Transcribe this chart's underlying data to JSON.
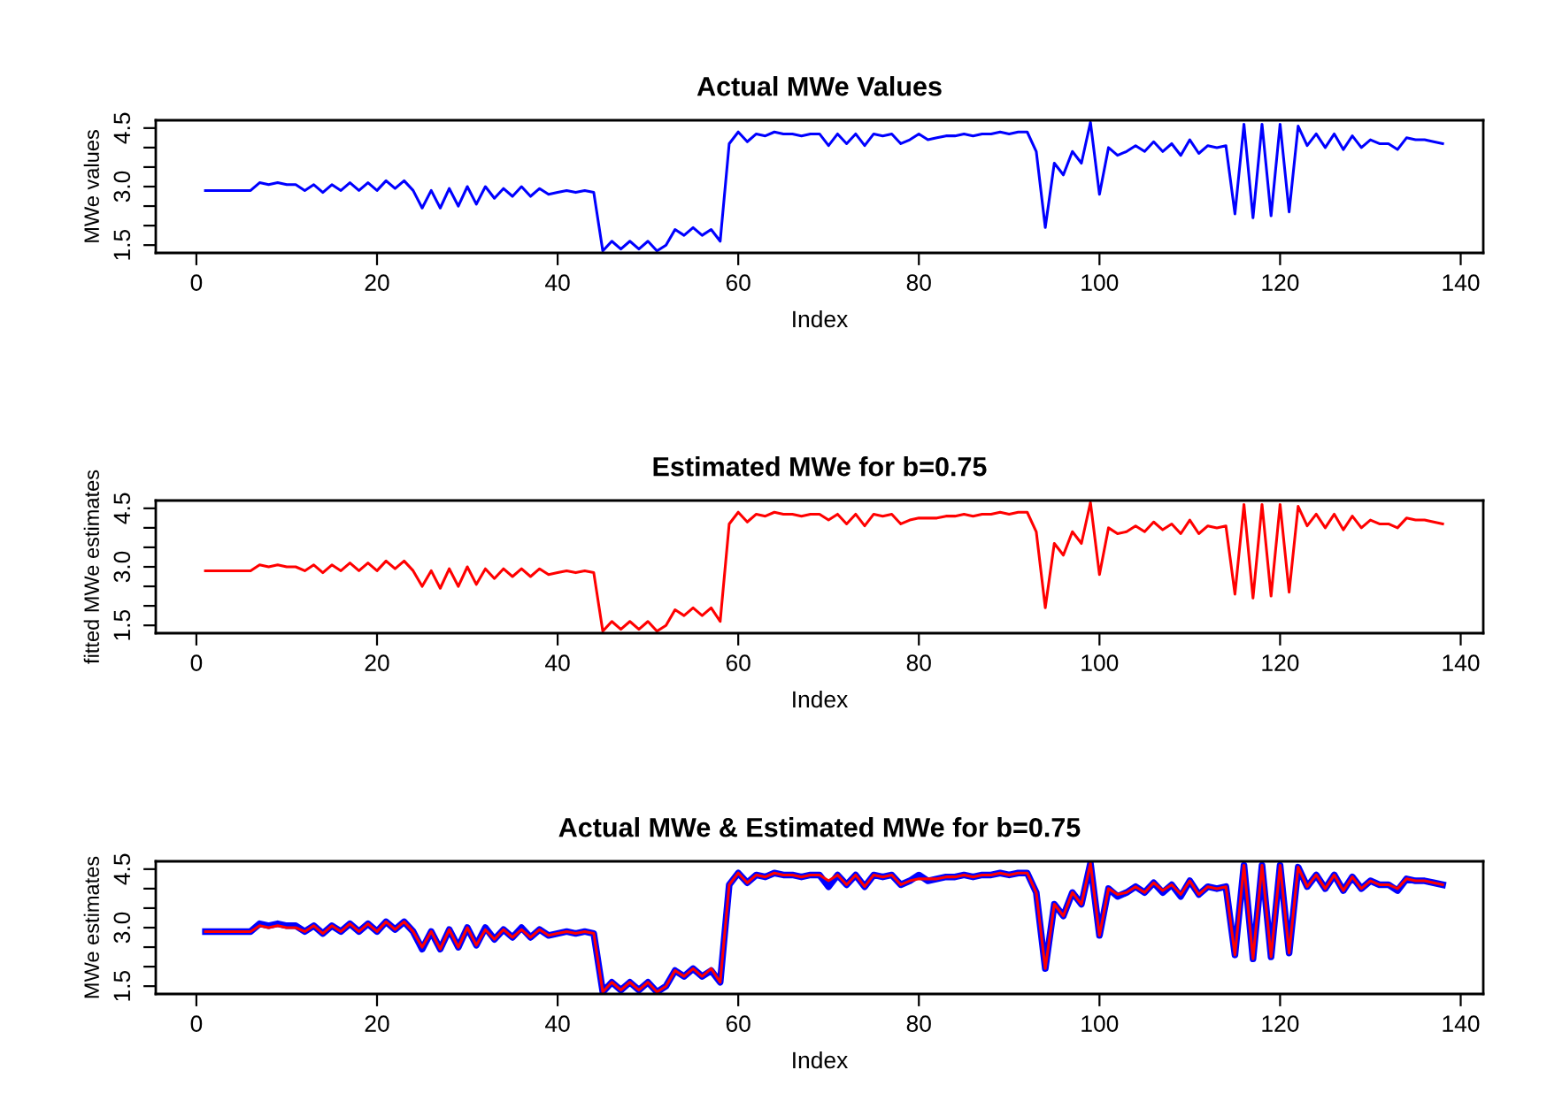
{
  "chart_data": [
    {
      "type": "line",
      "title": "Actual MWe Values",
      "xlabel": "Index",
      "ylabel": "MWe values",
      "x": [
        1,
        2,
        3,
        4,
        5,
        6,
        7,
        8,
        9,
        10,
        11,
        12,
        13,
        14,
        15,
        16,
        17,
        18,
        19,
        20,
        21,
        22,
        23,
        24,
        25,
        26,
        27,
        28,
        29,
        30,
        31,
        32,
        33,
        34,
        35,
        36,
        37,
        38,
        39,
        40,
        41,
        42,
        43,
        44,
        45,
        46,
        47,
        48,
        49,
        50,
        51,
        52,
        53,
        54,
        55,
        56,
        57,
        58,
        59,
        60,
        61,
        62,
        63,
        64,
        65,
        66,
        67,
        68,
        69,
        70,
        71,
        72,
        73,
        74,
        75,
        76,
        77,
        78,
        79,
        80,
        81,
        82,
        83,
        84,
        85,
        86,
        87,
        88,
        89,
        90,
        91,
        92,
        93,
        94,
        95,
        96,
        97,
        98,
        99,
        100,
        101,
        102,
        103,
        104,
        105,
        106,
        107,
        108,
        109,
        110,
        111,
        112,
        113,
        114,
        115,
        116,
        117,
        118,
        119,
        120,
        121,
        122,
        123,
        124,
        125,
        126,
        127,
        128,
        129,
        130,
        131,
        132,
        133,
        134,
        135,
        136,
        137,
        138
      ],
      "series": [
        {
          "color": "#0000ff",
          "values": [
            2.9,
            2.9,
            2.9,
            2.9,
            2.9,
            2.9,
            3.1,
            3.05,
            3.1,
            3.05,
            3.05,
            2.9,
            3.05,
            2.85,
            3.05,
            2.9,
            3.1,
            2.9,
            3.1,
            2.9,
            3.15,
            2.95,
            3.15,
            2.9,
            2.45,
            2.9,
            2.45,
            2.95,
            2.5,
            3.0,
            2.55,
            3.0,
            2.7,
            2.95,
            2.75,
            3.0,
            2.75,
            2.95,
            2.8,
            2.85,
            2.9,
            2.85,
            2.9,
            2.85,
            1.35,
            1.6,
            1.4,
            1.6,
            1.4,
            1.6,
            1.35,
            1.5,
            1.9,
            1.75,
            1.95,
            1.75,
            1.9,
            1.6,
            4.1,
            4.4,
            4.15,
            4.35,
            4.3,
            4.4,
            4.35,
            4.35,
            4.3,
            4.35,
            4.35,
            4.05,
            4.35,
            4.1,
            4.35,
            4.05,
            4.35,
            4.3,
            4.35,
            4.1,
            4.2,
            4.35,
            4.2,
            4.25,
            4.3,
            4.3,
            4.35,
            4.3,
            4.35,
            4.35,
            4.4,
            4.35,
            4.4,
            4.4,
            3.9,
            1.95,
            3.6,
            3.3,
            3.9,
            3.6,
            4.65,
            2.8,
            4.0,
            3.8,
            3.9,
            4.05,
            3.9,
            4.15,
            3.9,
            4.1,
            3.8,
            4.2,
            3.85,
            4.05,
            4.0,
            4.05,
            2.3,
            4.6,
            2.2,
            4.6,
            2.25,
            4.6,
            2.35,
            4.55,
            4.05,
            4.35,
            4.0,
            4.35,
            3.95,
            4.3,
            4.0,
            4.2,
            4.1,
            4.1,
            3.95,
            4.25,
            4.2,
            4.2,
            4.15,
            4.1
          ]
        }
      ],
      "xlim": [
        -4.5,
        142.5
      ],
      "xticks": [
        0,
        20,
        40,
        60,
        80,
        100,
        120,
        140
      ],
      "ylim": [
        1.3,
        4.7
      ],
      "yticks": [
        {
          "value": 1.5,
          "label": "1.5"
        },
        {
          "value": 2,
          "label": null
        },
        {
          "value": 2.5,
          "label": null
        },
        {
          "value": 3,
          "label": "3.0"
        },
        {
          "value": 3.5,
          "label": null
        },
        {
          "value": 4,
          "label": null
        },
        {
          "value": 4.5,
          "label": "4.5"
        }
      ],
      "grid": false,
      "legend": false,
      "marker": "none",
      "line_style": "solid"
    },
    {
      "type": "line",
      "title": "Estimated MWe for b=0.75",
      "xlabel": "Index",
      "ylabel": "fitted MWe estimates",
      "x": [
        1,
        2,
        3,
        4,
        5,
        6,
        7,
        8,
        9,
        10,
        11,
        12,
        13,
        14,
        15,
        16,
        17,
        18,
        19,
        20,
        21,
        22,
        23,
        24,
        25,
        26,
        27,
        28,
        29,
        30,
        31,
        32,
        33,
        34,
        35,
        36,
        37,
        38,
        39,
        40,
        41,
        42,
        43,
        44,
        45,
        46,
        47,
        48,
        49,
        50,
        51,
        52,
        53,
        54,
        55,
        56,
        57,
        58,
        59,
        60,
        61,
        62,
        63,
        64,
        65,
        66,
        67,
        68,
        69,
        70,
        71,
        72,
        73,
        74,
        75,
        76,
        77,
        78,
        79,
        80,
        81,
        82,
        83,
        84,
        85,
        86,
        87,
        88,
        89,
        90,
        91,
        92,
        93,
        94,
        95,
        96,
        97,
        98,
        99,
        100,
        101,
        102,
        103,
        104,
        105,
        106,
        107,
        108,
        109,
        110,
        111,
        112,
        113,
        114,
        115,
        116,
        117,
        118,
        119,
        120,
        121,
        122,
        123,
        124,
        125,
        126,
        127,
        128,
        129,
        130,
        131,
        132,
        133,
        134,
        135,
        136,
        137,
        138
      ],
      "series": [
        {
          "color": "#ff0000",
          "values": [
            2.9,
            2.9,
            2.9,
            2.9,
            2.9,
            2.9,
            3.05,
            3.0,
            3.05,
            3.0,
            3.0,
            2.9,
            3.05,
            2.85,
            3.05,
            2.9,
            3.1,
            2.9,
            3.1,
            2.9,
            3.15,
            2.95,
            3.15,
            2.9,
            2.5,
            2.9,
            2.45,
            2.95,
            2.5,
            3.0,
            2.55,
            2.95,
            2.7,
            2.95,
            2.75,
            2.95,
            2.75,
            2.95,
            2.8,
            2.85,
            2.9,
            2.85,
            2.9,
            2.85,
            1.35,
            1.6,
            1.4,
            1.6,
            1.4,
            1.6,
            1.35,
            1.5,
            1.9,
            1.75,
            1.95,
            1.75,
            1.95,
            1.6,
            4.1,
            4.4,
            4.15,
            4.35,
            4.3,
            4.4,
            4.35,
            4.35,
            4.3,
            4.35,
            4.35,
            4.2,
            4.35,
            4.1,
            4.35,
            4.05,
            4.35,
            4.3,
            4.35,
            4.1,
            4.2,
            4.25,
            4.25,
            4.25,
            4.3,
            4.3,
            4.35,
            4.3,
            4.35,
            4.35,
            4.4,
            4.35,
            4.4,
            4.4,
            3.9,
            1.95,
            3.6,
            3.3,
            3.9,
            3.6,
            4.65,
            2.8,
            4.0,
            3.85,
            3.9,
            4.05,
            3.9,
            4.15,
            3.95,
            4.1,
            3.85,
            4.2,
            3.85,
            4.05,
            4.0,
            4.05,
            2.3,
            4.6,
            2.2,
            4.6,
            2.25,
            4.6,
            2.35,
            4.55,
            4.05,
            4.35,
            4.0,
            4.35,
            3.95,
            4.3,
            4.0,
            4.2,
            4.1,
            4.1,
            4.0,
            4.25,
            4.2,
            4.2,
            4.15,
            4.1
          ]
        }
      ],
      "xlim": [
        -4.5,
        142.5
      ],
      "xticks": [
        0,
        20,
        40,
        60,
        80,
        100,
        120,
        140
      ],
      "ylim": [
        1.3,
        4.7
      ],
      "yticks": [
        {
          "value": 1.5,
          "label": "1.5"
        },
        {
          "value": 2,
          "label": null
        },
        {
          "value": 2.5,
          "label": null
        },
        {
          "value": 3,
          "label": "3.0"
        },
        {
          "value": 3.5,
          "label": null
        },
        {
          "value": 4,
          "label": null
        },
        {
          "value": 4.5,
          "label": "4.5"
        }
      ],
      "grid": false,
      "legend": false,
      "marker": "none",
      "line_style": "solid"
    },
    {
      "type": "line",
      "title": "Actual MWe & Estimated MWe for b=0.75",
      "xlabel": "Index",
      "ylabel": "MWe estimates",
      "x": [
        1,
        2,
        3,
        4,
        5,
        6,
        7,
        8,
        9,
        10,
        11,
        12,
        13,
        14,
        15,
        16,
        17,
        18,
        19,
        20,
        21,
        22,
        23,
        24,
        25,
        26,
        27,
        28,
        29,
        30,
        31,
        32,
        33,
        34,
        35,
        36,
        37,
        38,
        39,
        40,
        41,
        42,
        43,
        44,
        45,
        46,
        47,
        48,
        49,
        50,
        51,
        52,
        53,
        54,
        55,
        56,
        57,
        58,
        59,
        60,
        61,
        62,
        63,
        64,
        65,
        66,
        67,
        68,
        69,
        70,
        71,
        72,
        73,
        74,
        75,
        76,
        77,
        78,
        79,
        80,
        81,
        82,
        83,
        84,
        85,
        86,
        87,
        88,
        89,
        90,
        91,
        92,
        93,
        94,
        95,
        96,
        97,
        98,
        99,
        100,
        101,
        102,
        103,
        104,
        105,
        106,
        107,
        108,
        109,
        110,
        111,
        112,
        113,
        114,
        115,
        116,
        117,
        118,
        119,
        120,
        121,
        122,
        123,
        124,
        125,
        126,
        127,
        128,
        129,
        130,
        131,
        132,
        133,
        134,
        135,
        136,
        137,
        138
      ],
      "series": [
        {
          "color": "#0000ff",
          "values": [
            2.9,
            2.9,
            2.9,
            2.9,
            2.9,
            2.9,
            3.1,
            3.05,
            3.1,
            3.05,
            3.05,
            2.9,
            3.05,
            2.85,
            3.05,
            2.9,
            3.1,
            2.9,
            3.1,
            2.9,
            3.15,
            2.95,
            3.15,
            2.9,
            2.45,
            2.9,
            2.45,
            2.95,
            2.5,
            3.0,
            2.55,
            3.0,
            2.7,
            2.95,
            2.75,
            3.0,
            2.75,
            2.95,
            2.8,
            2.85,
            2.9,
            2.85,
            2.9,
            2.85,
            1.35,
            1.6,
            1.4,
            1.6,
            1.4,
            1.6,
            1.35,
            1.5,
            1.9,
            1.75,
            1.95,
            1.75,
            1.9,
            1.6,
            4.1,
            4.4,
            4.15,
            4.35,
            4.3,
            4.4,
            4.35,
            4.35,
            4.3,
            4.35,
            4.35,
            4.05,
            4.35,
            4.1,
            4.35,
            4.05,
            4.35,
            4.3,
            4.35,
            4.1,
            4.2,
            4.35,
            4.2,
            4.25,
            4.3,
            4.3,
            4.35,
            4.3,
            4.35,
            4.35,
            4.4,
            4.35,
            4.4,
            4.4,
            3.9,
            1.95,
            3.6,
            3.3,
            3.9,
            3.6,
            4.65,
            2.8,
            4.0,
            3.8,
            3.9,
            4.05,
            3.9,
            4.15,
            3.9,
            4.1,
            3.8,
            4.2,
            3.85,
            4.05,
            4.0,
            4.05,
            2.3,
            4.6,
            2.2,
            4.6,
            2.25,
            4.6,
            2.35,
            4.55,
            4.05,
            4.35,
            4.0,
            4.35,
            3.95,
            4.3,
            4.0,
            4.2,
            4.1,
            4.1,
            3.95,
            4.25,
            4.2,
            4.2,
            4.15,
            4.1
          ]
        },
        {
          "color": "#ff0000",
          "values": [
            2.9,
            2.9,
            2.9,
            2.9,
            2.9,
            2.9,
            3.05,
            3.0,
            3.05,
            3.0,
            3.0,
            2.9,
            3.05,
            2.85,
            3.05,
            2.9,
            3.1,
            2.9,
            3.1,
            2.9,
            3.15,
            2.95,
            3.15,
            2.9,
            2.5,
            2.9,
            2.45,
            2.95,
            2.5,
            3.0,
            2.55,
            2.95,
            2.7,
            2.95,
            2.75,
            2.95,
            2.75,
            2.95,
            2.8,
            2.85,
            2.9,
            2.85,
            2.9,
            2.85,
            1.35,
            1.6,
            1.4,
            1.6,
            1.4,
            1.6,
            1.35,
            1.5,
            1.9,
            1.75,
            1.95,
            1.75,
            1.95,
            1.6,
            4.1,
            4.4,
            4.15,
            4.35,
            4.3,
            4.4,
            4.35,
            4.35,
            4.3,
            4.35,
            4.35,
            4.2,
            4.35,
            4.1,
            4.35,
            4.05,
            4.35,
            4.3,
            4.35,
            4.1,
            4.2,
            4.25,
            4.25,
            4.25,
            4.3,
            4.3,
            4.35,
            4.3,
            4.35,
            4.35,
            4.4,
            4.35,
            4.4,
            4.4,
            3.9,
            1.95,
            3.6,
            3.3,
            3.9,
            3.6,
            4.65,
            2.8,
            4.0,
            3.85,
            3.9,
            4.05,
            3.9,
            4.15,
            3.95,
            4.1,
            3.85,
            4.2,
            3.85,
            4.05,
            4.0,
            4.05,
            2.3,
            4.6,
            2.2,
            4.6,
            2.25,
            4.6,
            2.35,
            4.55,
            4.05,
            4.35,
            4.0,
            4.35,
            3.95,
            4.3,
            4.0,
            4.2,
            4.1,
            4.1,
            4.0,
            4.25,
            4.2,
            4.2,
            4.15,
            4.1
          ]
        }
      ],
      "xlim": [
        -4.5,
        142.5
      ],
      "xticks": [
        0,
        20,
        40,
        60,
        80,
        100,
        120,
        140
      ],
      "ylim": [
        1.3,
        4.7
      ],
      "yticks": [
        {
          "value": 1.5,
          "label": "1.5"
        },
        {
          "value": 2,
          "label": null
        },
        {
          "value": 2.5,
          "label": null
        },
        {
          "value": 3,
          "label": "3.0"
        },
        {
          "value": 3.5,
          "label": null
        },
        {
          "value": 4,
          "label": null
        },
        {
          "value": 4.5,
          "label": "4.5"
        }
      ],
      "grid": false,
      "legend": false,
      "marker": "none",
      "line_style": "solid"
    }
  ]
}
